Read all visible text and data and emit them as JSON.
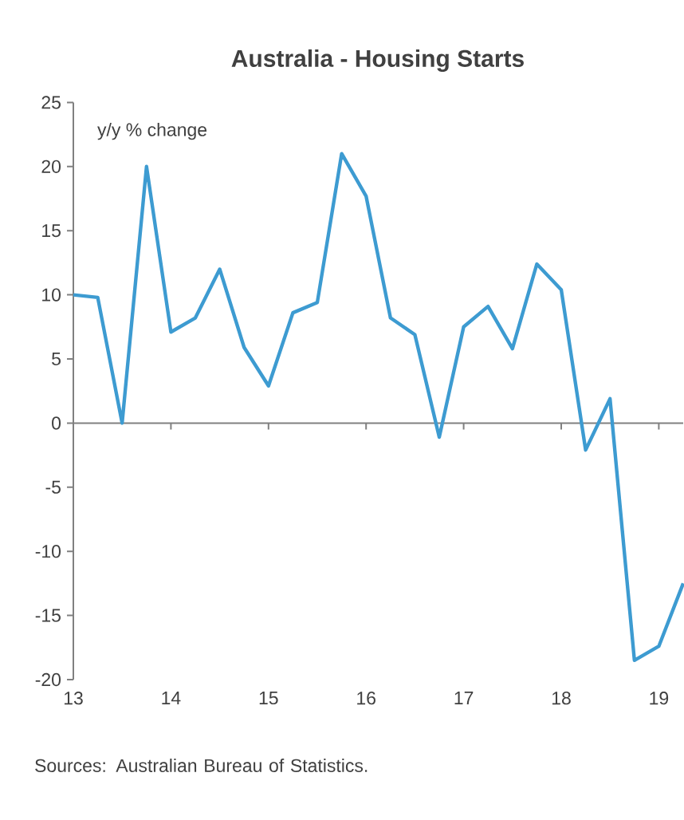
{
  "chart_data": {
    "type": "line",
    "title": "Australia - Housing Starts",
    "ylabel": "y/y % change",
    "annotations": [
      "Sources: Australian Bureau of Statistics."
    ],
    "x": [
      13,
      13.25,
      13.5,
      13.75,
      14,
      14.25,
      14.5,
      14.75,
      15,
      15.25,
      15.5,
      15.75,
      16,
      16.25,
      16.5,
      16.75,
      17,
      17.25,
      17.5,
      17.75,
      18,
      18.25,
      18.5,
      18.75,
      19,
      19.25
    ],
    "series": [
      {
        "color": "#3d9bd1",
        "values": [
          10,
          9.8,
          0,
          20,
          7.1,
          8.2,
          12,
          5.9,
          2.9,
          8.6,
          9.4,
          21,
          17.7,
          8.2,
          6.9,
          -1.1,
          7.5,
          9.1,
          5.8,
          12.4,
          10.4,
          -2.1,
          1.9,
          -18.5,
          -17.4,
          -12.5
        ]
      }
    ],
    "xlim": [
      13,
      19.25
    ],
    "ylim": [
      -20,
      25
    ],
    "xticks": [
      13,
      14,
      15,
      16,
      17,
      18,
      19
    ],
    "yticks": [
      -20,
      -15,
      -10,
      -5,
      0,
      5,
      10,
      15,
      20,
      25
    ],
    "marker": "none",
    "line_style": "solid"
  }
}
